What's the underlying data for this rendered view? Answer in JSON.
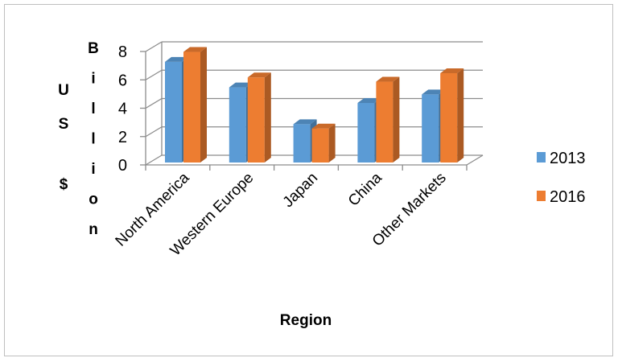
{
  "chart_data": {
    "type": "bar",
    "categories": [
      "North America",
      "Western Europe",
      "Japan",
      "China",
      "Other Markets"
    ],
    "series": [
      {
        "name": "2013",
        "values": [
          7.1,
          5.3,
          2.7,
          4.2,
          4.8
        ],
        "color": "#5b9bd5"
      },
      {
        "name": "2016",
        "values": [
          7.8,
          6.0,
          2.4,
          5.7,
          6.3
        ],
        "color": "#ed7d31"
      }
    ],
    "ylabel_left": "US $",
    "ylabel_right": "Billion",
    "xlabel": "Region",
    "yticks": [
      "0",
      "2",
      "4",
      "6",
      "8"
    ],
    "ylim": [
      0,
      8
    ],
    "grid": true,
    "legend_position": "right",
    "style": "3d-clustered-column"
  }
}
